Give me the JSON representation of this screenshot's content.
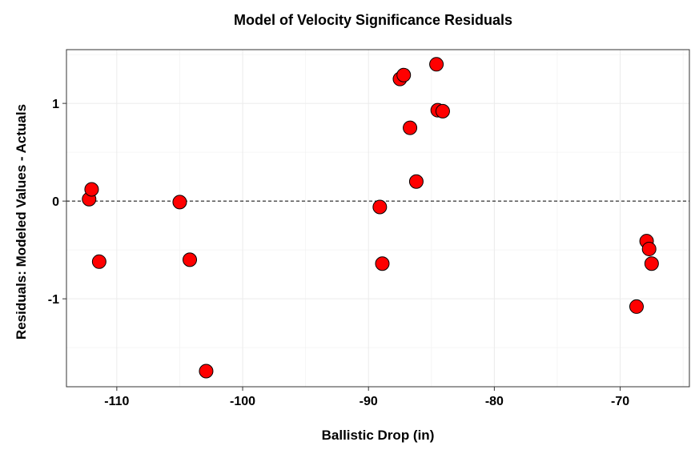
{
  "chart_data": {
    "type": "scatter",
    "title": "Model of Velocity Significance Residuals",
    "xlabel": "Ballistic Drop (in)",
    "ylabel": "Residuals: Modeled Values - Actuals",
    "xlim": [
      -114,
      -64.5
    ],
    "ylim": [
      -1.9,
      1.55
    ],
    "x_ticks": [
      -110,
      -100,
      -90,
      -80,
      -70
    ],
    "x_tick_labels": [
      "-110",
      "-100",
      "-90",
      "-80",
      "-70"
    ],
    "y_ticks": [
      -1,
      0,
      1
    ],
    "y_tick_labels": [
      "-1",
      "0",
      "1"
    ],
    "reference_line": {
      "y": 0,
      "style": "dashed"
    },
    "grid": true,
    "point_color": "#ff0000",
    "point_outline": "#000000",
    "points": [
      {
        "x": -112.2,
        "y": 0.02
      },
      {
        "x": -112.0,
        "y": 0.12
      },
      {
        "x": -111.4,
        "y": -0.62
      },
      {
        "x": -105.0,
        "y": -0.01
      },
      {
        "x": -104.2,
        "y": -0.6
      },
      {
        "x": -102.9,
        "y": -1.74
      },
      {
        "x": -89.1,
        "y": -0.06
      },
      {
        "x": -88.9,
        "y": -0.64
      },
      {
        "x": -87.5,
        "y": 1.25
      },
      {
        "x": -87.2,
        "y": 1.29
      },
      {
        "x": -86.7,
        "y": 0.75
      },
      {
        "x": -86.2,
        "y": 0.2
      },
      {
        "x": -84.6,
        "y": 1.4
      },
      {
        "x": -84.5,
        "y": 0.93
      },
      {
        "x": -84.1,
        "y": 0.92
      },
      {
        "x": -68.7,
        "y": -1.08
      },
      {
        "x": -67.9,
        "y": -0.41
      },
      {
        "x": -67.7,
        "y": -0.49
      },
      {
        "x": -67.5,
        "y": -0.64
      }
    ]
  }
}
